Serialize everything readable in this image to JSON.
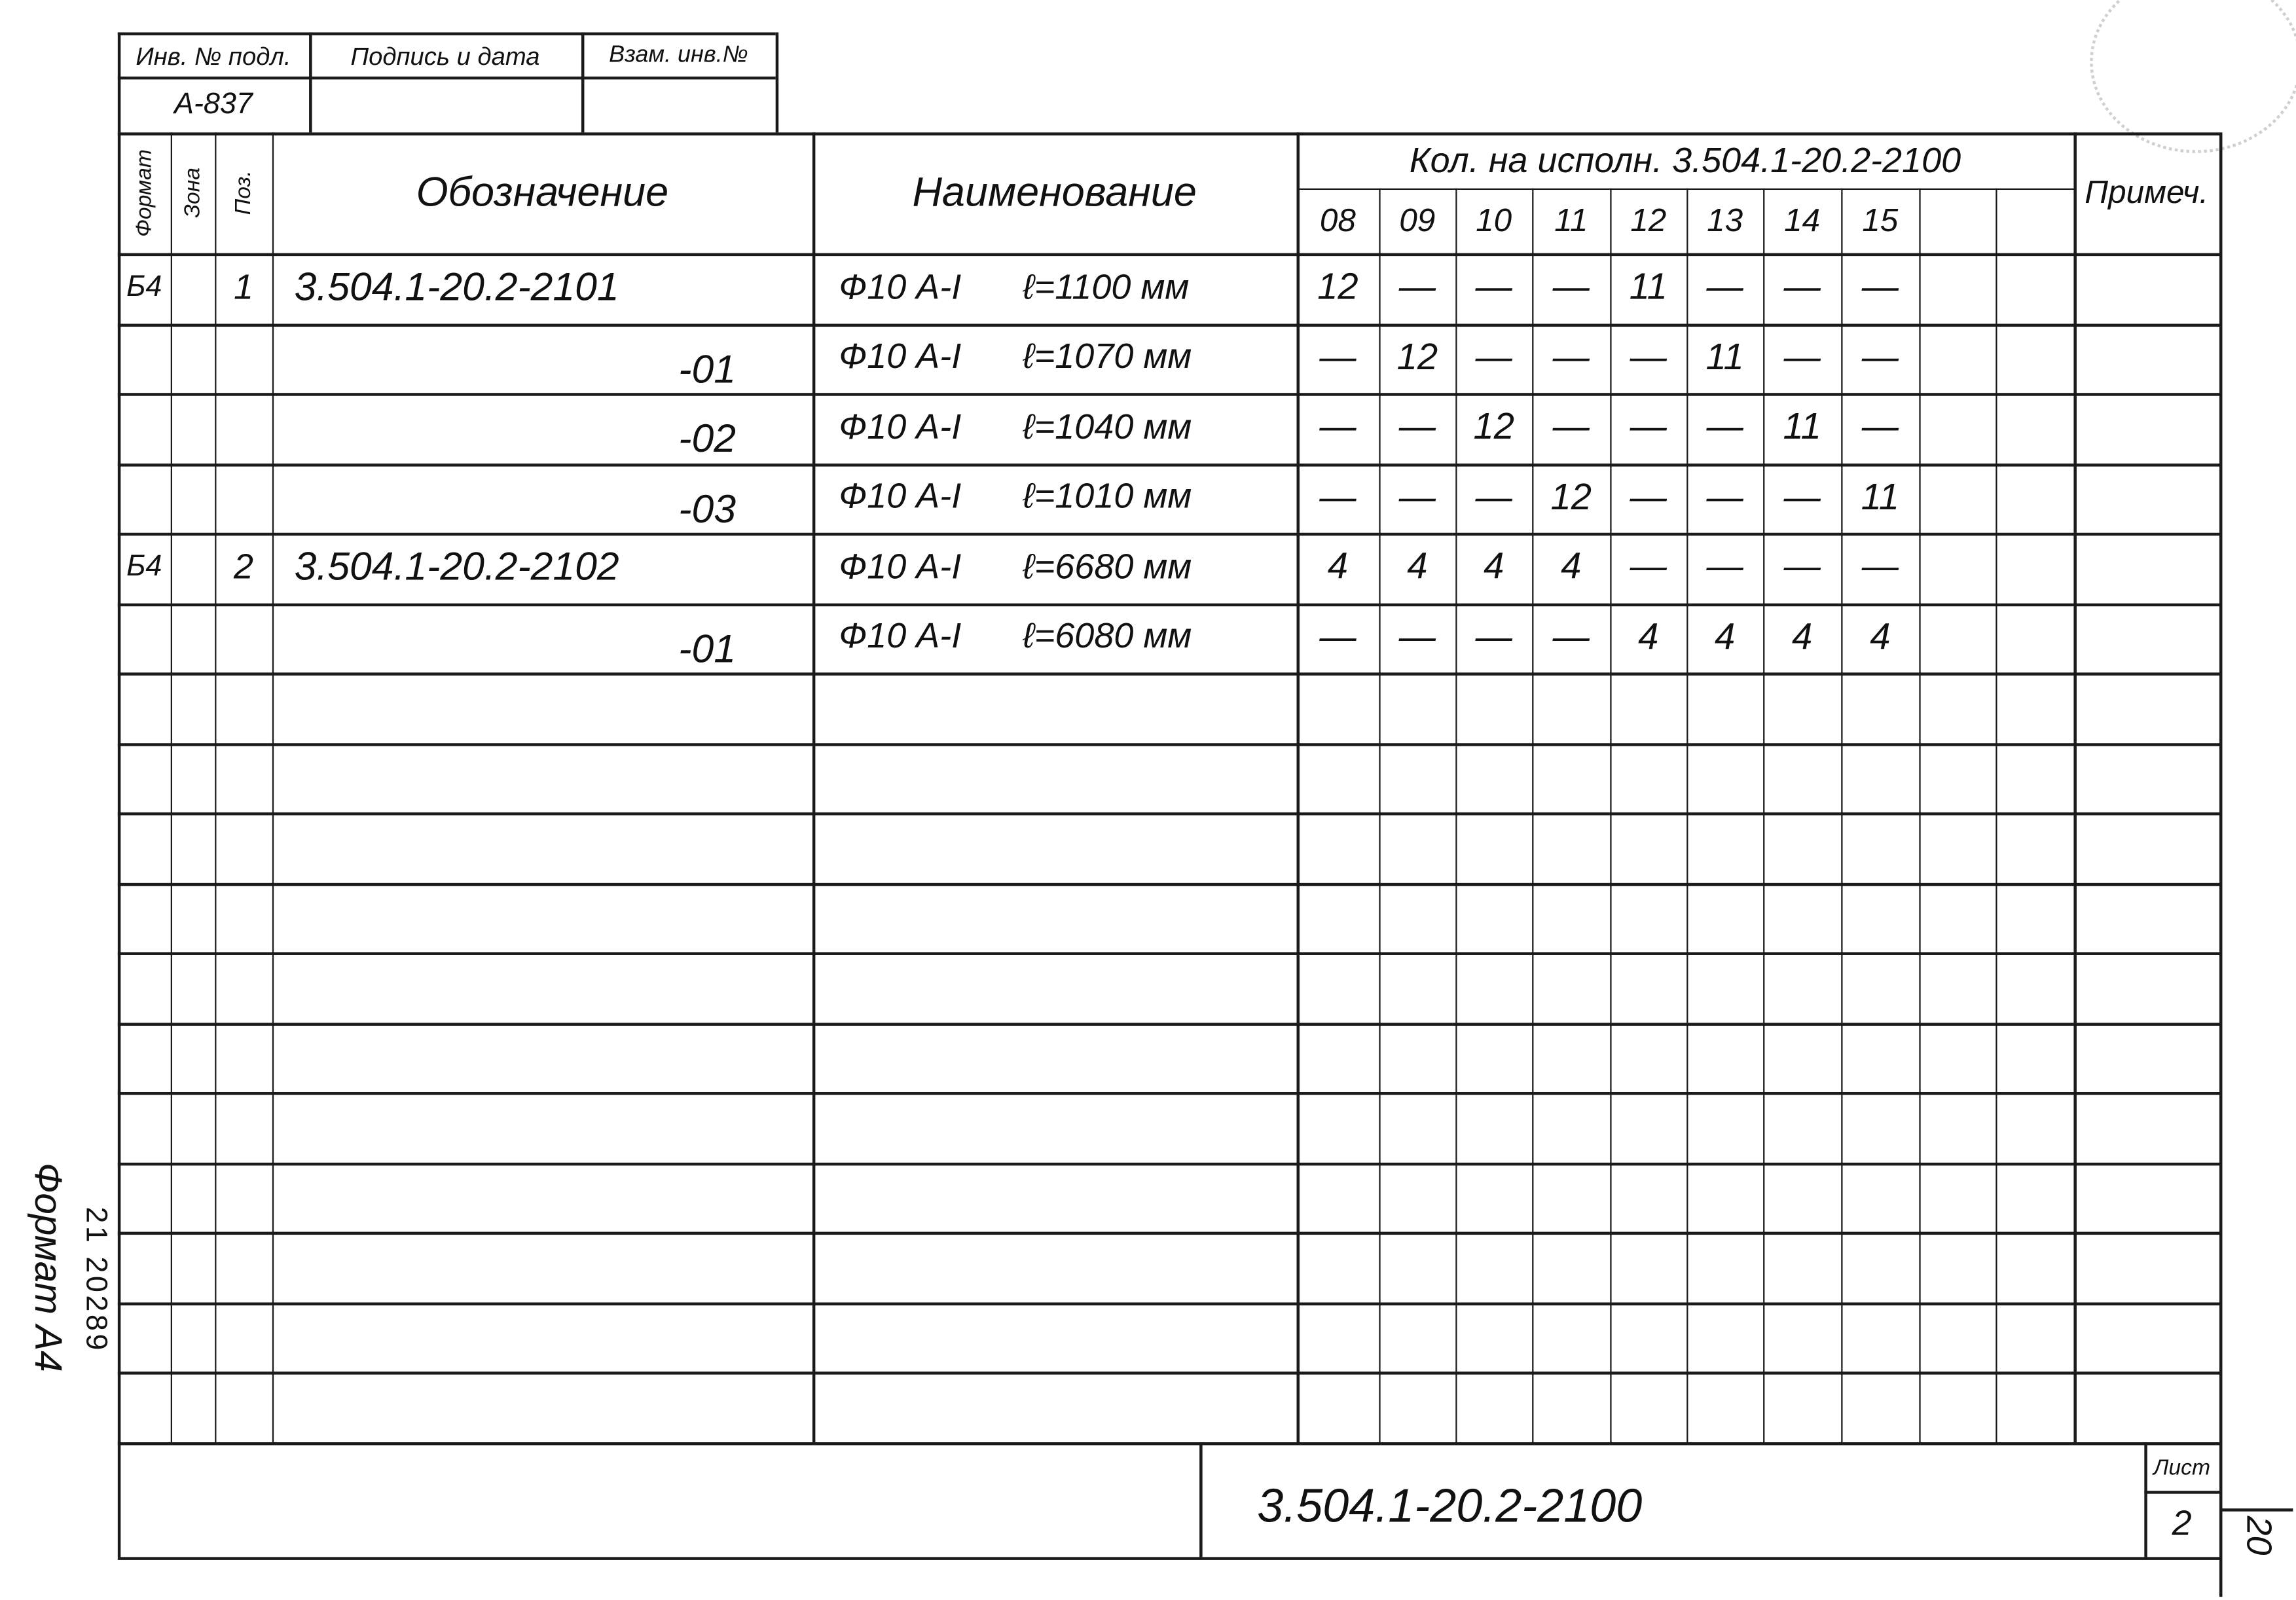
{
  "stamp_header": {
    "inv_label": "Инв. № подл.",
    "sign_label": "Подпись и дата",
    "replace_label": "Взам. инв.№",
    "inv_value": "А-837",
    "sign_value": "",
    "replace_value": ""
  },
  "table": {
    "headers": {
      "format": "Формат",
      "zone": "Зона",
      "pos": "Поз.",
      "designation": "Обозначение",
      "name": "Наименование",
      "qty_group": "Кол. на исполн. 3.504.1-20.2-2100",
      "note": "Примеч."
    },
    "variant_columns": [
      "08",
      "09",
      "10",
      "11",
      "12",
      "13",
      "14",
      "15",
      "",
      ""
    ],
    "rows": [
      {
        "format": "Б4",
        "zone": "",
        "pos": "1",
        "designation": "3.504.1-20.2-2101",
        "suffix": "",
        "name": "Ф10 А-I",
        "length": "ℓ=1100 мм",
        "qty": [
          "12",
          "—",
          "—",
          "—",
          "11",
          "—",
          "—",
          "—",
          "",
          ""
        ],
        "note": ""
      },
      {
        "format": "",
        "zone": "",
        "pos": "",
        "designation": "",
        "suffix": "-01",
        "name": "Ф10 А-I",
        "length": "ℓ=1070 мм",
        "qty": [
          "—",
          "12",
          "—",
          "—",
          "—",
          "11",
          "—",
          "—",
          "",
          ""
        ],
        "note": ""
      },
      {
        "format": "",
        "zone": "",
        "pos": "",
        "designation": "",
        "suffix": "-02",
        "name": "Ф10 А-I",
        "length": "ℓ=1040 мм",
        "qty": [
          "—",
          "—",
          "12",
          "—",
          "—",
          "—",
          "11",
          "—",
          "",
          ""
        ],
        "note": ""
      },
      {
        "format": "",
        "zone": "",
        "pos": "",
        "designation": "",
        "suffix": "-03",
        "name": "Ф10 А-I",
        "length": "ℓ=1010 мм",
        "qty": [
          "—",
          "—",
          "—",
          "12",
          "—",
          "—",
          "—",
          "11",
          "",
          ""
        ],
        "note": ""
      },
      {
        "format": "Б4",
        "zone": "",
        "pos": "2",
        "designation": "3.504.1-20.2-2102",
        "suffix": "",
        "name": "Ф10 А-I",
        "length": "ℓ=6680 мм",
        "qty": [
          "4",
          "4",
          "4",
          "4",
          "—",
          "—",
          "—",
          "—",
          "",
          ""
        ],
        "note": ""
      },
      {
        "format": "",
        "zone": "",
        "pos": "",
        "designation": "",
        "suffix": "-01",
        "name": "Ф10 А-I",
        "length": "ℓ=6080 мм",
        "qty": [
          "—",
          "—",
          "—",
          "—",
          "4",
          "4",
          "4",
          "4",
          "",
          ""
        ],
        "note": ""
      }
    ],
    "empty_rows": 11
  },
  "title_block": {
    "document_code": "3.504.1-20.2-2100",
    "sheet_label": "Лист",
    "sheet_number": "2"
  },
  "margin": {
    "format_label": "Формат А4",
    "form_code": "21 20289",
    "page_number": "20"
  }
}
